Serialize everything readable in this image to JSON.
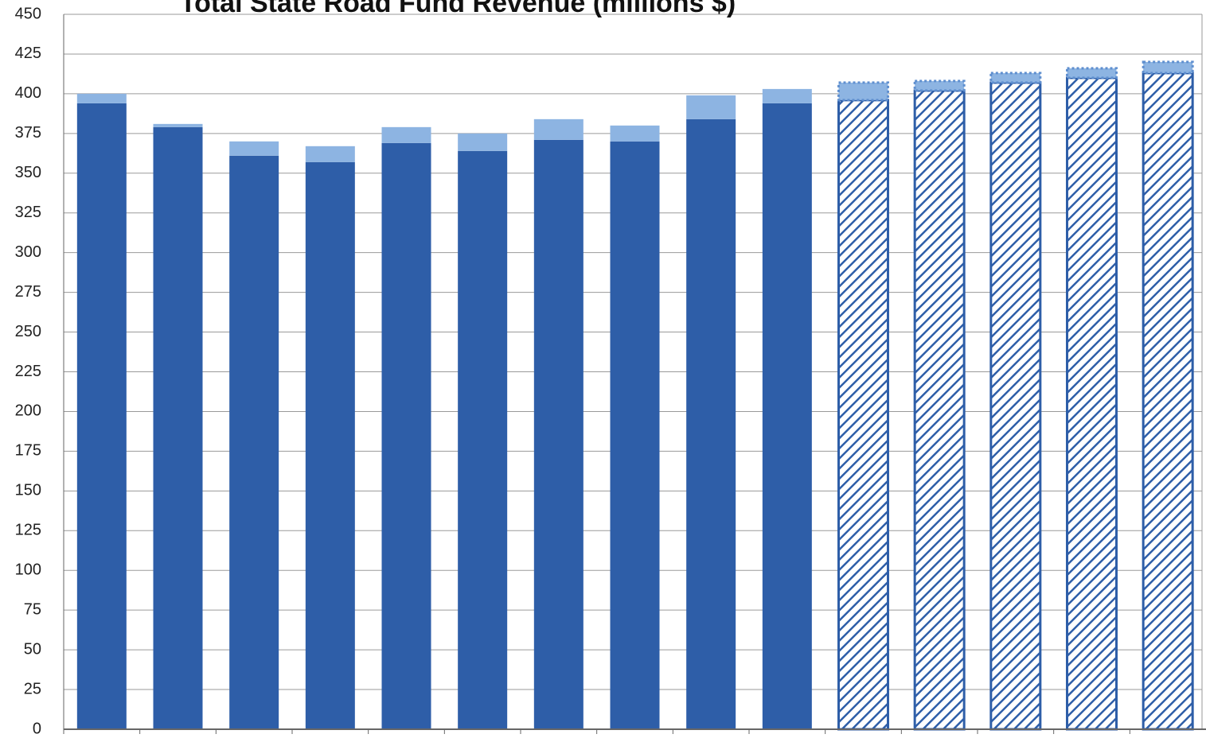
{
  "chart_data": {
    "type": "stacked_bar",
    "title": "Total State Road Fund Revenue (millions $)",
    "categories": [
      null,
      null,
      null,
      null,
      null,
      null,
      null,
      null,
      null,
      null,
      null,
      null,
      null,
      null,
      null
    ],
    "series": [
      {
        "color": "#2e5ea8",
        "values": [
          394,
          379,
          361,
          357,
          369,
          364,
          371,
          370,
          384,
          394,
          396,
          402,
          407,
          410,
          413
        ]
      },
      {
        "color": "#8db4e2",
        "values": [
          6,
          2,
          9,
          10,
          10,
          11,
          13,
          10,
          15,
          9,
          11,
          6,
          6,
          6,
          7
        ]
      }
    ],
    "pattern": [
      "solid",
      "solid",
      "solid",
      "solid",
      "solid",
      "solid",
      "solid",
      "solid",
      "solid",
      "solid",
      "hatch",
      "hatch",
      "hatch",
      "hatch",
      "hatch"
    ],
    "ylim": [
      0,
      450
    ],
    "yticks": [
      0,
      25,
      50,
      75,
      100,
      125,
      150,
      175,
      200,
      225,
      250,
      275,
      300,
      325,
      350,
      375,
      400,
      425,
      450
    ],
    "grid": true
  }
}
